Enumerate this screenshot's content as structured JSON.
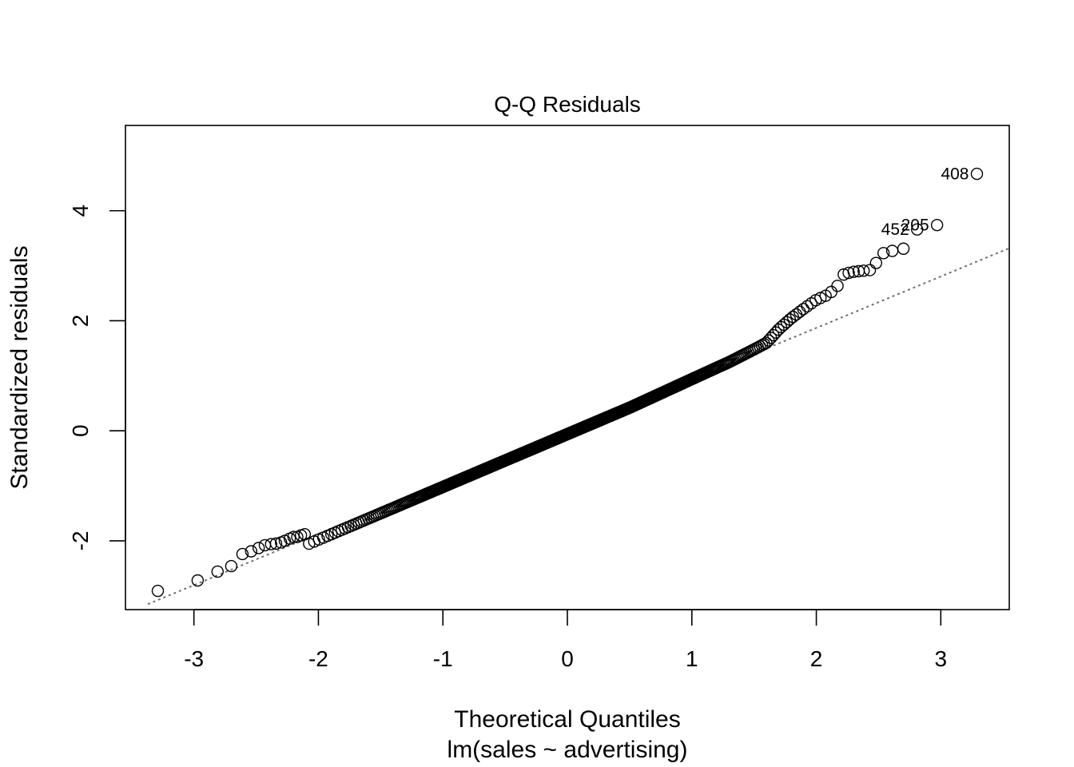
{
  "chart_data": {
    "type": "scatter",
    "title": "Q-Q Residuals",
    "xlabel": "Theoretical Quantiles",
    "subtitle": "lm(sales ~ advertising)",
    "ylabel": "Standardized residuals",
    "xlim": [
      -3.55,
      3.55
    ],
    "ylim": [
      -3.25,
      5.55
    ],
    "xticks": [
      -3,
      -2,
      -1,
      0,
      1,
      2,
      3
    ],
    "yticks": [
      -2,
      0,
      2,
      4
    ],
    "grid": false,
    "reference_line": {
      "style": "dotted",
      "color": "#707070",
      "intercept": 0.0,
      "slope": 0.935
    },
    "outlier_labels": [
      {
        "label": "408",
        "x": 3.29,
        "y": 4.67
      },
      {
        "label": "205",
        "x": 2.97,
        "y": 3.74
      },
      {
        "label": "452",
        "x": 2.81,
        "y": 3.66
      }
    ],
    "sample_size": 500,
    "profile": [
      [
        0.0,
        -0.06
      ],
      [
        0.5,
        0.42
      ],
      [
        1.0,
        0.94
      ],
      [
        1.3,
        1.25
      ],
      [
        1.5,
        1.48
      ],
      [
        1.6,
        1.6
      ],
      [
        1.7,
        1.85
      ],
      [
        1.8,
        2.05
      ],
      [
        1.9,
        2.22
      ],
      [
        2.0,
        2.38
      ],
      [
        2.1,
        2.48
      ],
      [
        2.2,
        2.7
      ]
    ],
    "points_extra": [
      {
        "x": -3.29,
        "y": -2.91
      },
      {
        "x": -2.97,
        "y": -2.72
      },
      {
        "x": -2.81,
        "y": -2.56
      },
      {
        "x": -2.7,
        "y": -2.46
      },
      {
        "x": -2.61,
        "y": -2.24
      },
      {
        "x": -2.54,
        "y": -2.19
      },
      {
        "x": -2.48,
        "y": -2.13
      },
      {
        "x": -2.43,
        "y": -2.08
      },
      {
        "x": -2.38,
        "y": -2.06
      },
      {
        "x": -2.34,
        "y": -2.05
      },
      {
        "x": -2.3,
        "y": -2.03
      },
      {
        "x": -2.27,
        "y": -2.0
      },
      {
        "x": -2.23,
        "y": -1.96
      },
      {
        "x": -2.2,
        "y": -1.93
      },
      {
        "x": -2.17,
        "y": -1.93
      },
      {
        "x": -2.14,
        "y": -1.9
      },
      {
        "x": -2.11,
        "y": -1.88
      },
      {
        "x": 2.22,
        "y": 2.84
      },
      {
        "x": 2.26,
        "y": 2.87
      },
      {
        "x": 2.3,
        "y": 2.89
      },
      {
        "x": 2.34,
        "y": 2.9
      },
      {
        "x": 2.38,
        "y": 2.91
      },
      {
        "x": 2.43,
        "y": 2.92
      },
      {
        "x": 2.48,
        "y": 3.05
      },
      {
        "x": 2.54,
        "y": 3.23
      },
      {
        "x": 2.61,
        "y": 3.27
      },
      {
        "x": 2.7,
        "y": 3.31
      },
      {
        "x": 2.81,
        "y": 3.66
      },
      {
        "x": 2.97,
        "y": 3.74
      },
      {
        "x": 3.29,
        "y": 4.67
      }
    ]
  }
}
